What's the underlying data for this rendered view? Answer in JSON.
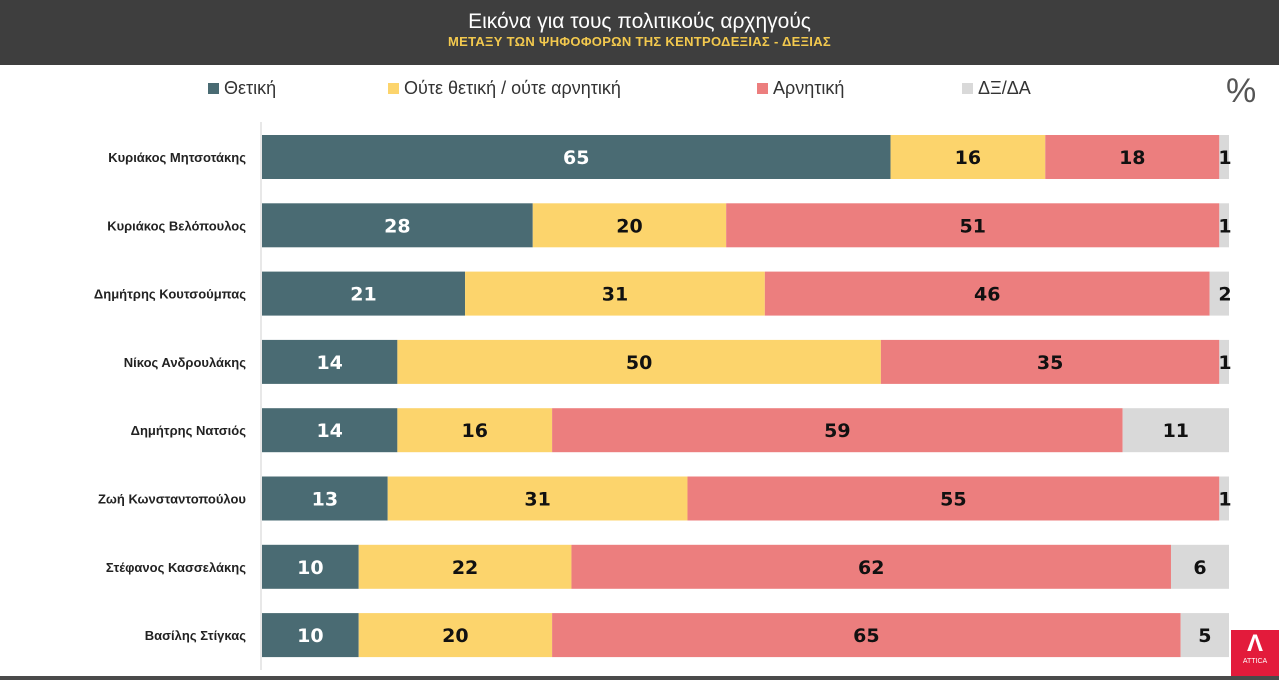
{
  "chart_data": {
    "type": "bar",
    "orientation": "horizontal-stacked-100",
    "title": "Εικόνα για τους πολιτικούς αρχηγούς",
    "subtitle": "ΜΕΤΑΞΥ ΤΩΝ ΨΗΦΟΦΟΡΩΝ ΤΗΣ ΚΕΝΤΡΟΔΕΞΙΑΣ - ΔΕΞΙΑΣ",
    "unit_label": "%",
    "legend_position": "top",
    "categories": [
      "Κυριάκος Μητσοτάκης",
      "Κυριάκος Βελόπουλος",
      "Δημήτρης Κουτσούμπας",
      "Νίκος Ανδρουλάκης",
      "Δημήτρης Νατσιός",
      "Ζωή Κωνσταντοπούλου",
      "Στέφανος Κασσελάκης",
      "Βασίλης Στίγκας"
    ],
    "series": [
      {
        "name": "Θετική",
        "color": "#4a6b73",
        "label_color": "#ffffff",
        "values": [
          65,
          28,
          21,
          14,
          14,
          13,
          10,
          10
        ]
      },
      {
        "name": "Ούτε θετική / ούτε αρνητική",
        "color": "#fcd46c",
        "label_color": "#111111",
        "values": [
          16,
          20,
          31,
          50,
          16,
          31,
          22,
          20
        ]
      },
      {
        "name": "Αρνητική",
        "color": "#ec7e7e",
        "label_color": "#111111",
        "values": [
          18,
          51,
          46,
          35,
          59,
          55,
          62,
          65
        ]
      },
      {
        "name": "ΔΞ/ΔΑ",
        "color": "#d9d9d9",
        "label_color": "#111111",
        "values": [
          1,
          1,
          2,
          1,
          11,
          1,
          6,
          5
        ]
      }
    ],
    "xlim": [
      0,
      100
    ]
  },
  "logo": {
    "text": "ATTICA"
  }
}
